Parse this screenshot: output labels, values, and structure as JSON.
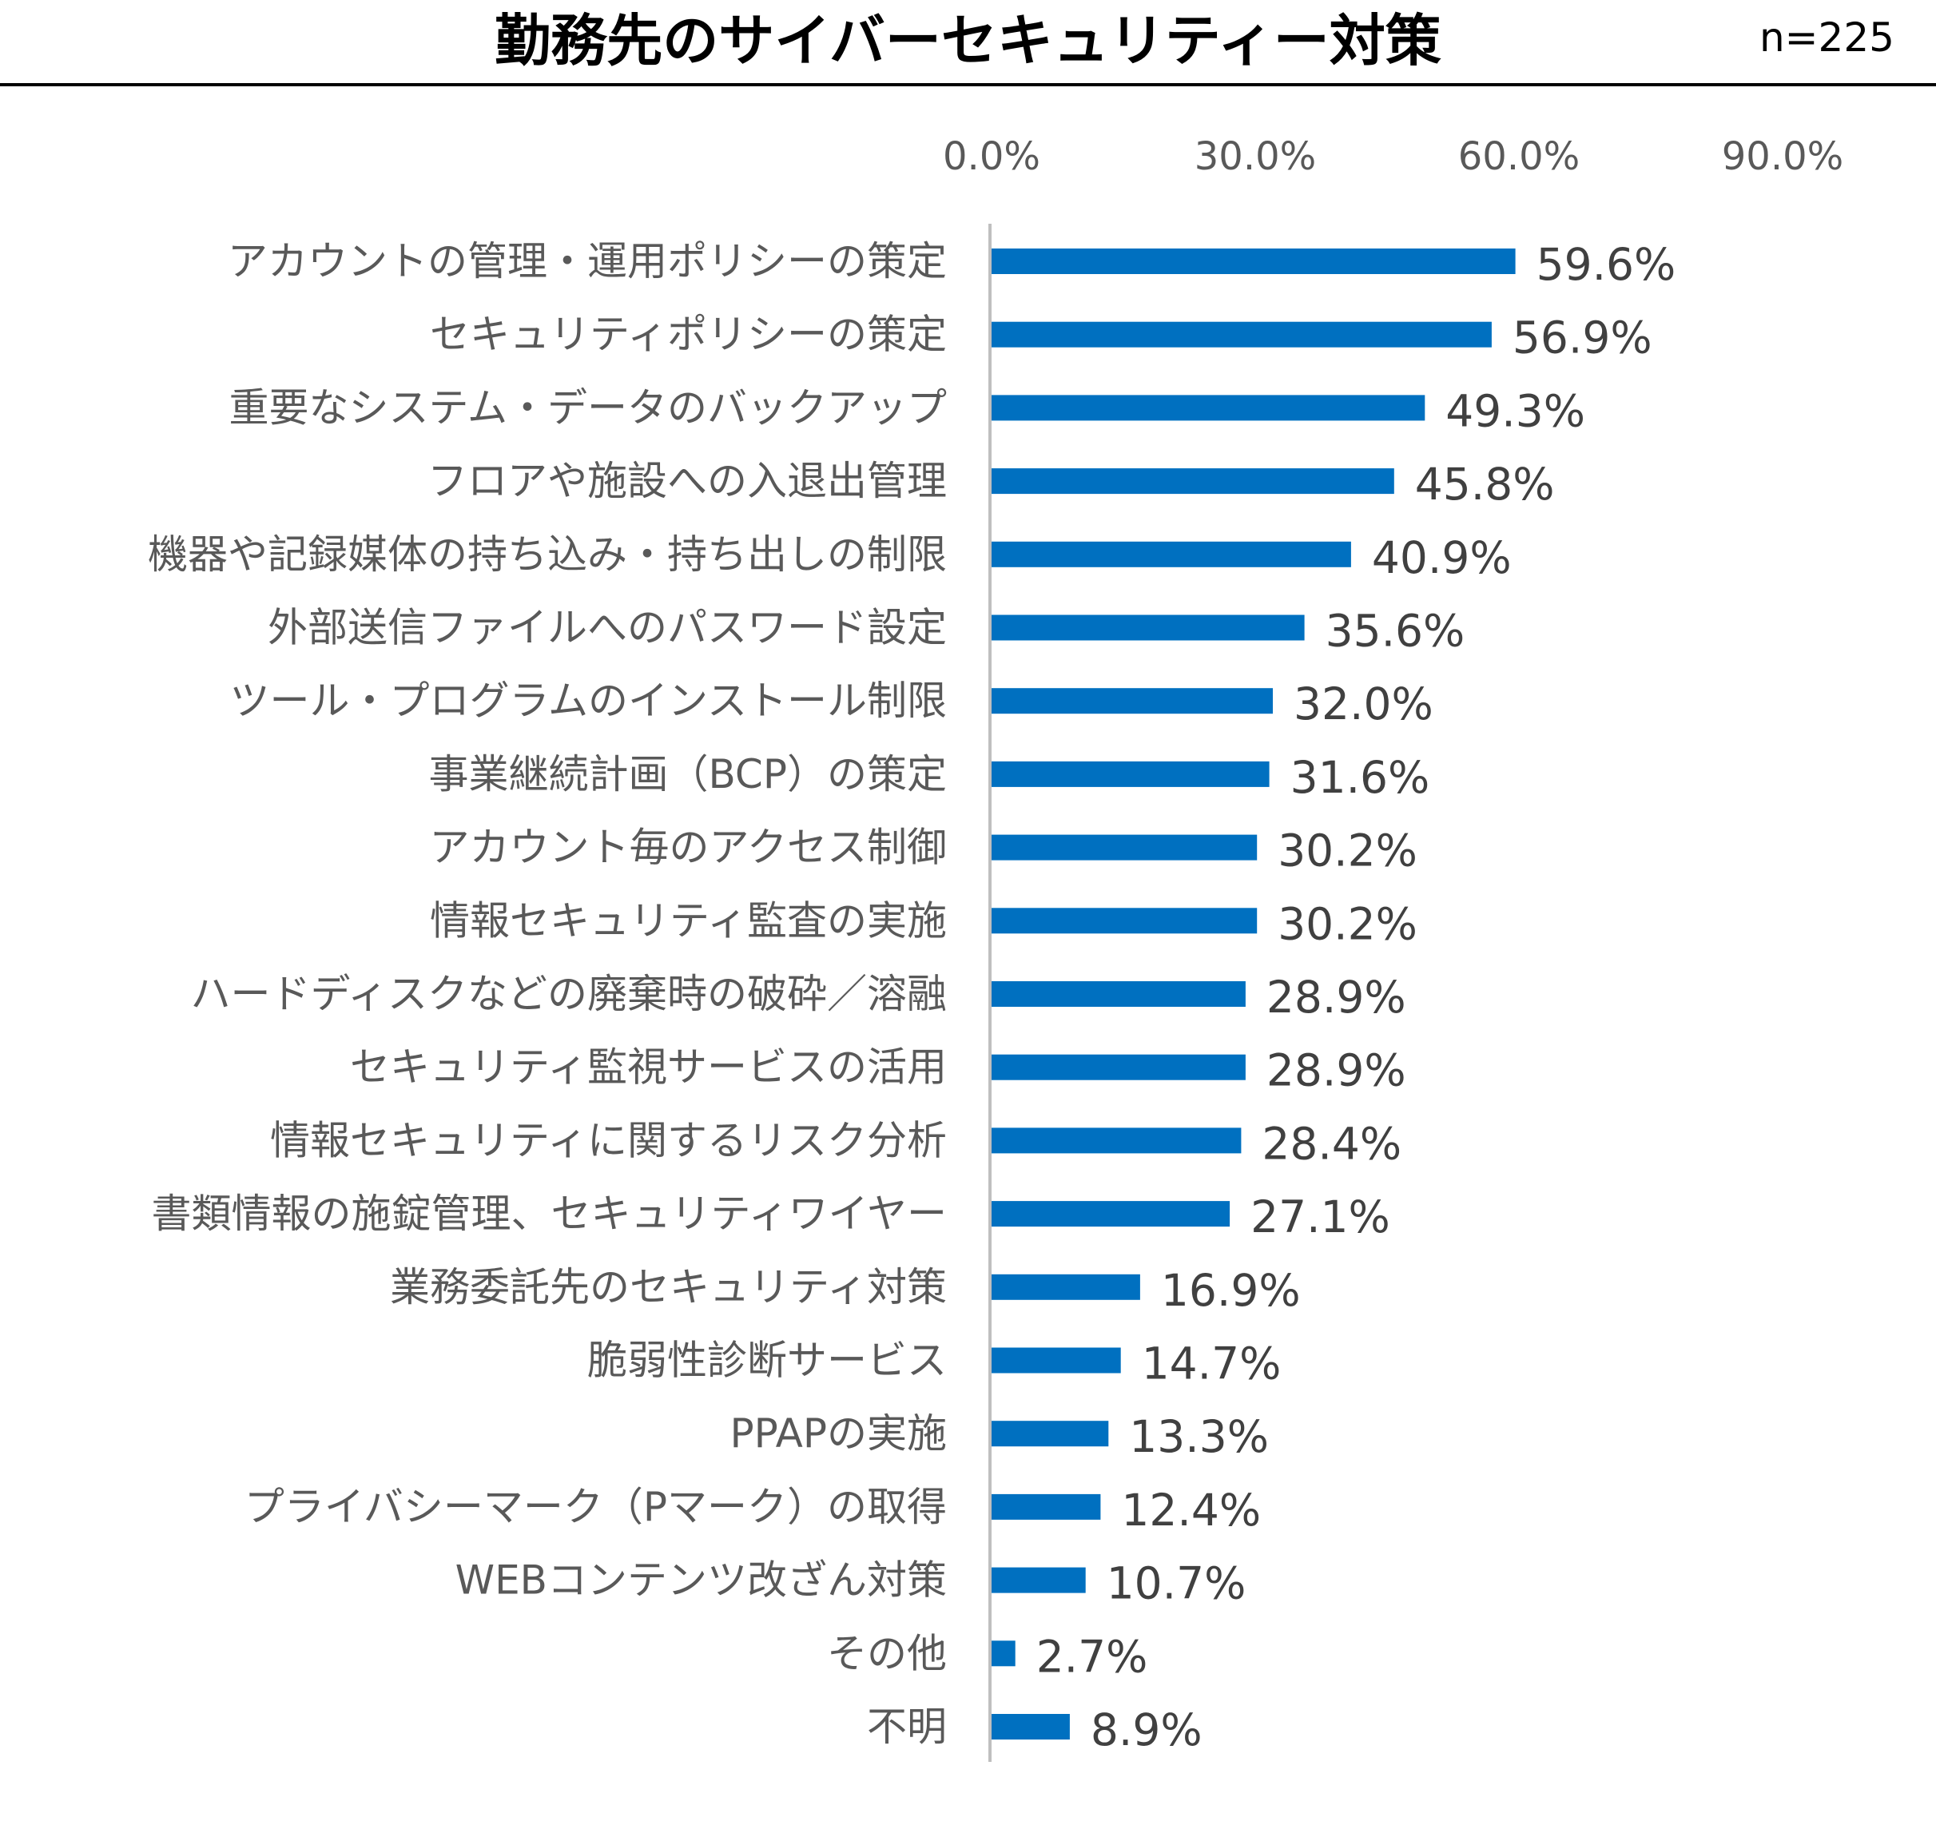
{
  "header": {
    "title": "勤務先のサイバーセキュリティー対策",
    "sample_size": "n=225"
  },
  "colors": {
    "bar": "#0070C0",
    "axis": "#BFBFBF",
    "category_text": "#595959",
    "value_text": "#404040"
  },
  "chart_data": {
    "type": "bar",
    "orientation": "horizontal",
    "title": "勤務先のサイバーセキュリティー対策",
    "xlabel": "",
    "ylabel": "",
    "xlim": [
      0,
      90
    ],
    "xticks": [
      0,
      30,
      60,
      90
    ],
    "xtick_labels": [
      "0.0%",
      "30.0%",
      "60.0%",
      "90.0%"
    ],
    "xaxis_position": "top",
    "grid": false,
    "legend": "none",
    "categories": [
      "アカウントの管理・運用ポリシーの策定",
      "セキュリティポリシーの策定",
      "重要なシステム・データのバックアップ",
      "フロアや施設への入退出管理",
      "機器や記録媒体の持ち込み・持ち出しの制限",
      "外部送信ファイルへのパスワード設定",
      "ツール・プログラムのインストール制限",
      "事業継続計画（BCP）の策定",
      "アカウント毎のアクセス制御",
      "情報セキュリティ監査の実施",
      "ハードディスクなどの廃棄時の破砕／溶融",
      "セキュリティ監視サービスの活用",
      "情報セキュリティに関するリスク分析",
      "書類情報の施錠管理、セキュリティワイヤー",
      "業務委託先のセキュリティ対策",
      "脆弱性診断サービス",
      "PPAPの実施",
      "プライバシーマーク（Pマーク）の取得",
      "WEBコンテンツ改ざん対策",
      "その他",
      "不明"
    ],
    "values": [
      59.6,
      56.9,
      49.3,
      45.8,
      40.9,
      35.6,
      32.0,
      31.6,
      30.2,
      30.2,
      28.9,
      28.9,
      28.4,
      27.1,
      16.9,
      14.7,
      13.3,
      12.4,
      10.7,
      2.7,
      8.9
    ],
    "value_labels": [
      "59.6%",
      "56.9%",
      "49.3%",
      "45.8%",
      "40.9%",
      "35.6%",
      "32.0%",
      "31.6%",
      "30.2%",
      "30.2%",
      "28.9%",
      "28.9%",
      "28.4%",
      "27.1%",
      "16.9%",
      "14.7%",
      "13.3%",
      "12.4%",
      "10.7%",
      "2.7%",
      "8.9%"
    ]
  }
}
